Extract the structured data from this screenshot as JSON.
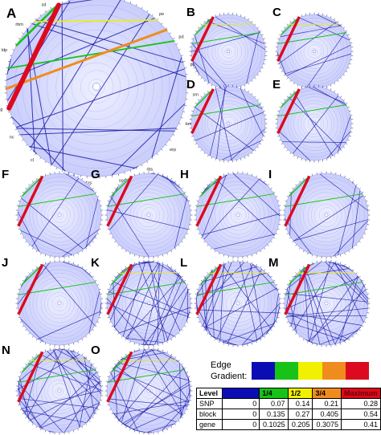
{
  "panels": [
    {
      "letter": "A",
      "edges": "full",
      "labels": [
        "pp",
        "rpm",
        "pe",
        "pd",
        "ppd",
        "sm",
        "bmp",
        "erp",
        "rbs",
        "sod",
        "crs",
        "ba",
        "cl",
        "nc",
        "bg",
        "lcl",
        "ldp",
        "rbm",
        "sd",
        "ad"
      ]
    },
    {
      "letter": "B",
      "edges": "sparse"
    },
    {
      "letter": "C",
      "edges": "sparse"
    },
    {
      "letter": "D",
      "edges": "sparse"
    },
    {
      "letter": "E",
      "edges": "sparse"
    },
    {
      "letter": "F",
      "edges": "sparse"
    },
    {
      "letter": "G",
      "edges": "sparse"
    },
    {
      "letter": "H",
      "edges": "sparse"
    },
    {
      "letter": "I",
      "edges": "sparse"
    },
    {
      "letter": "J",
      "edges": "sparse"
    },
    {
      "letter": "K",
      "edges": "dense"
    },
    {
      "letter": "L",
      "edges": "dense"
    },
    {
      "letter": "M",
      "edges": "dense"
    },
    {
      "letter": "N",
      "edges": "dense"
    },
    {
      "letter": "O",
      "edges": "dense"
    }
  ],
  "legend": {
    "title_line1": "Edge",
    "title_line2": "Gradient:",
    "gradient_colors": [
      "#0c0cb4",
      "#17c317",
      "#f0f000",
      "#f08c1e",
      "#dc0a1e"
    ],
    "table": {
      "header": [
        "Level",
        "Minimum",
        "1/4",
        "1/2",
        "3/4",
        "Maximum"
      ],
      "header_colors": [
        "#ffffff",
        "#0c0cb4",
        "#17c317",
        "#f0f000",
        "#f08c1e",
        "#dc0a1e"
      ],
      "rows": [
        {
          "level": "SNP",
          "values": [
            "0",
            "0.07",
            "0.14",
            "0.21",
            "0.28"
          ]
        },
        {
          "level": "block",
          "values": [
            "0",
            "0.135",
            "0.27",
            "0.405",
            "0.54"
          ]
        },
        {
          "level": "gene",
          "values": [
            "0",
            "0.1025",
            "0.205",
            "0.3075",
            "0.41"
          ]
        }
      ]
    }
  }
}
